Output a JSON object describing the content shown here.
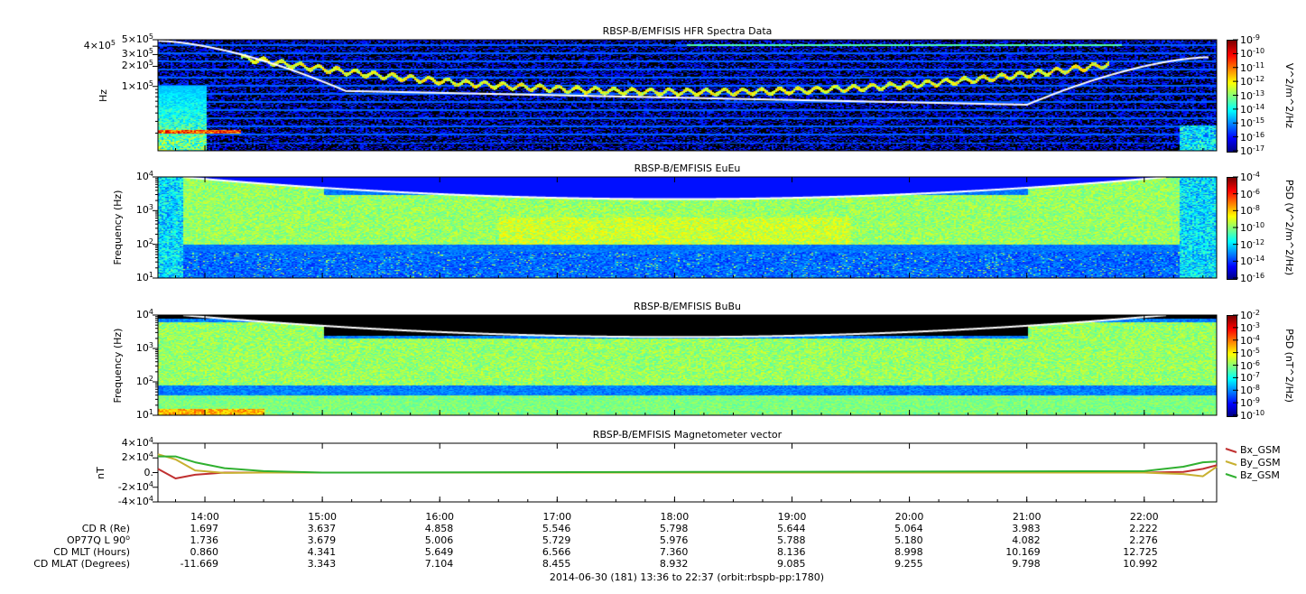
{
  "footer": "2014-06-30 (181) 13:36 to 22:37 (orbit:rbspb-pp:1780)",
  "chart_data": [
    {
      "type": "heatmap",
      "title": "RBSP-B/EMFISIS  HFR Spectra Data",
      "ylabel": "Hz",
      "yscale": "log",
      "ylim": [
        10000,
        500000
      ],
      "yticks": [
        {
          "m": "5",
          "e": "5",
          "v": 500000
        },
        {
          "m": "4",
          "e": "5",
          "v": 400000
        },
        {
          "m": "3",
          "e": "5",
          "v": 300000
        },
        {
          "m": "2",
          "e": "5",
          "v": 200000
        },
        {
          "m": "1",
          "e": "5",
          "v": 100000
        }
      ],
      "colorbar": {
        "label": "V^2/m^2/Hz",
        "range": [
          1e-17,
          1e-09
        ],
        "ticks": [
          "-9",
          "-10",
          "-11",
          "-12",
          "-13",
          "-14",
          "-15",
          "-16",
          "-17"
        ]
      }
    },
    {
      "type": "heatmap",
      "title": "RBSP-B/EMFISIS  EuEu",
      "ylabel": "Frequency (Hz)",
      "yscale": "log",
      "ylim": [
        10,
        10000
      ],
      "yticks": [
        "4",
        "3",
        "2",
        "1"
      ],
      "colorbar": {
        "label": "PSD (V^2/m^2/Hz)",
        "range": [
          1e-16,
          0.0001
        ],
        "ticks": [
          "-4",
          "-6",
          "-8",
          "-10",
          "-12",
          "-14",
          "-16"
        ]
      }
    },
    {
      "type": "heatmap",
      "title": "RBSP-B/EMFISIS  BuBu",
      "ylabel": "Frequency (Hz)",
      "yscale": "log",
      "ylim": [
        10,
        10000
      ],
      "yticks": [
        "4",
        "3",
        "2",
        "1"
      ],
      "colorbar": {
        "label": "PSD (nT^2/Hz)",
        "range": [
          1e-10,
          0.01
        ],
        "ticks": [
          "-2",
          "-3",
          "-4",
          "-5",
          "-6",
          "-7",
          "-8",
          "-9",
          "-10"
        ]
      }
    },
    {
      "type": "line",
      "title": "RBSP-B/EMFISIS  Magnetometer vector",
      "ylabel": "nT",
      "ylim": [
        -40000,
        40000
      ],
      "yticks": [
        {
          "t": "4×10",
          "e": "4"
        },
        {
          "t": "2×10",
          "e": "4"
        },
        {
          "t": "0.",
          "e": ""
        },
        {
          "t": "-2×10",
          "e": "4"
        },
        {
          "t": "-4×10",
          "e": "4"
        }
      ],
      "x": [
        "13:36",
        "13:45",
        "13:55",
        "14:10",
        "14:30",
        "15:00",
        "22:00",
        "22:20",
        "22:30",
        "22:37"
      ],
      "series": [
        {
          "name": "Bx_GSM",
          "color": "#c03030",
          "values": [
            5000,
            -8000,
            -3000,
            0,
            0,
            0,
            0,
            1000,
            5000,
            10000
          ]
        },
        {
          "name": "By_GSM",
          "color": "#c8b030",
          "values": [
            25000,
            18000,
            3000,
            -500,
            0,
            0,
            0,
            -2000,
            -5000,
            8000
          ]
        },
        {
          "name": "Bz_GSM",
          "color": "#30b030",
          "values": [
            22000,
            22000,
            14000,
            6000,
            2000,
            0,
            2000,
            8000,
            14000,
            15000
          ]
        }
      ]
    }
  ],
  "xaxis": {
    "start": "13:36",
    "end": "22:37",
    "ticks": [
      "14:00",
      "15:00",
      "16:00",
      "17:00",
      "18:00",
      "19:00",
      "20:00",
      "21:00",
      "22:00"
    ]
  },
  "ephemeris": {
    "rows": [
      {
        "label": "CD R (Re)",
        "values": [
          "1.697",
          "3.637",
          "4.858",
          "5.546",
          "5.798",
          "5.644",
          "5.064",
          "3.983",
          "2.222"
        ]
      },
      {
        "label": "OP77Q L 90",
        "sup": "o",
        "values": [
          "1.736",
          "3.679",
          "5.006",
          "5.729",
          "5.976",
          "5.788",
          "5.180",
          "4.082",
          "2.276"
        ]
      },
      {
        "label": "CD MLT (Hours)",
        "values": [
          "0.860",
          "4.341",
          "5.649",
          "6.566",
          "7.360",
          "8.136",
          "8.998",
          "10.169",
          "12.725"
        ]
      },
      {
        "label": "CD MLAT (Degrees)",
        "values": [
          "-11.669",
          "3.343",
          "7.104",
          "8.455",
          "8.932",
          "9.085",
          "9.255",
          "9.798",
          "10.992"
        ]
      }
    ]
  }
}
